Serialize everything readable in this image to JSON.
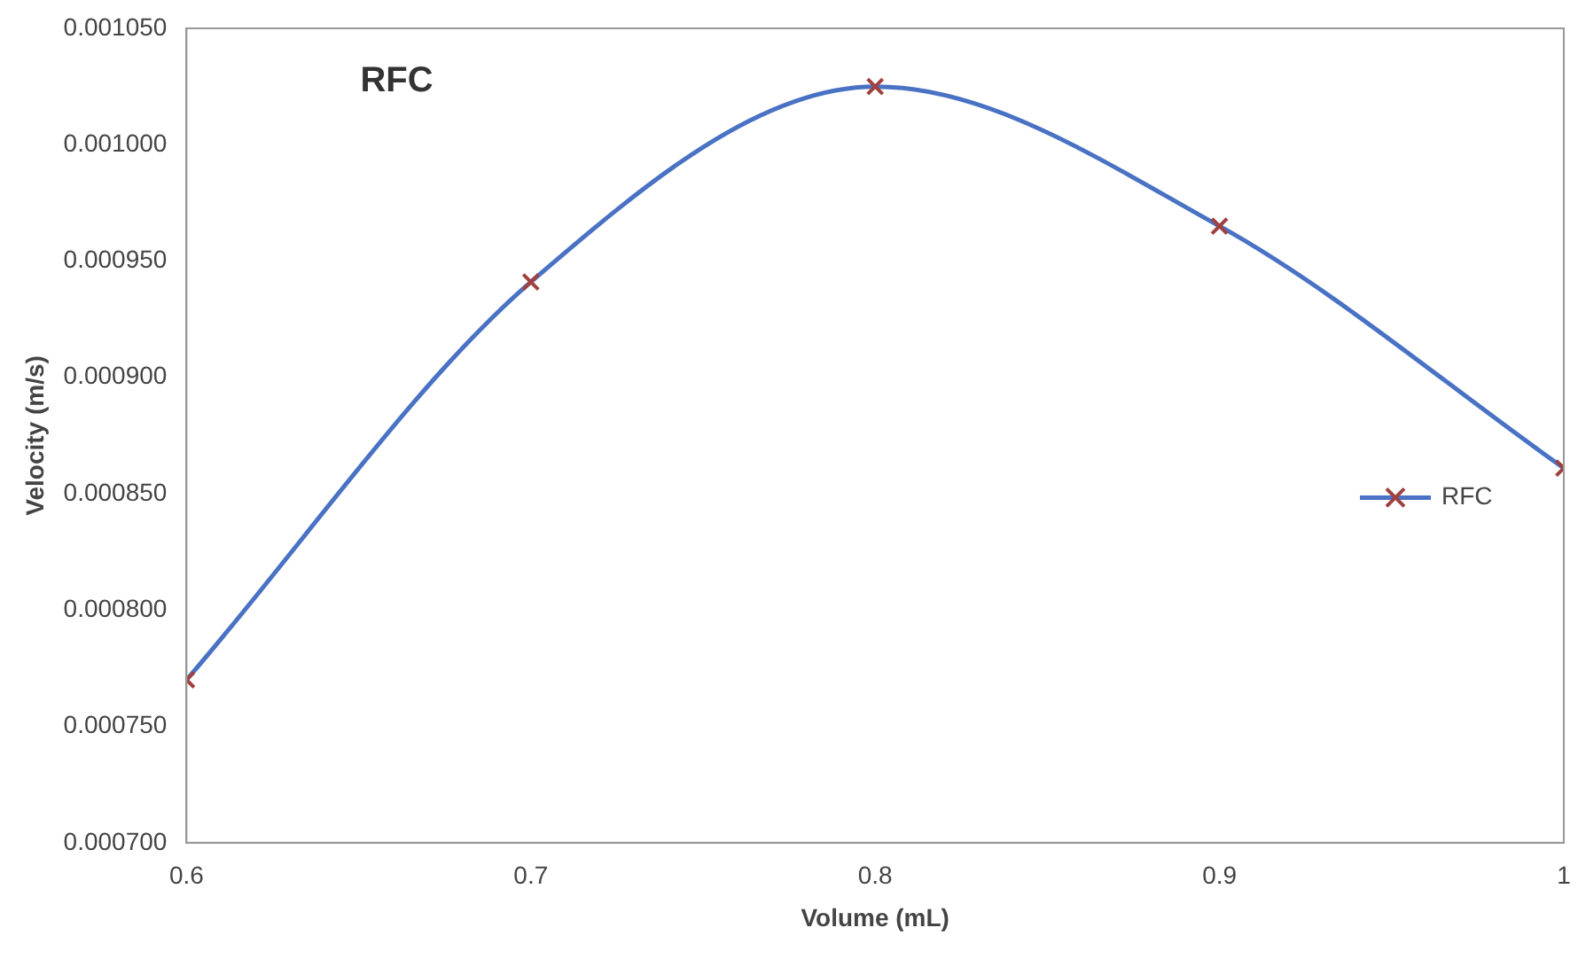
{
  "chart_data": {
    "type": "line",
    "title": "RFC",
    "xlabel": "Volume (mL)",
    "ylabel": "Velocity (m/s)",
    "x": [
      0.6,
      0.7,
      0.8,
      0.9,
      1
    ],
    "series": [
      {
        "name": "RFC",
        "color": "#4a72c4",
        "colors": [
          "#a0413f",
          "#a0413f",
          "#a0413f",
          "#a0413f",
          "#a0413f"
        ],
        "values": [
          0.00077,
          0.000941,
          0.001025,
          0.000965,
          0.000861
        ]
      }
    ],
    "xlim": [
      0.6,
      1
    ],
    "xticks": [
      0.6,
      0.7,
      0.8,
      0.9,
      1
    ],
    "ylim": [
      0.0007,
      0.00105
    ],
    "yticks": [
      {
        "value": 0.0007,
        "label": "0.000700"
      },
      {
        "value": 0.00075,
        "label": "0.000750"
      },
      {
        "value": 0.0008,
        "label": "0.000800"
      },
      {
        "value": 0.00085,
        "label": "0.000850"
      },
      {
        "value": 0.0009,
        "label": "0.000900"
      },
      {
        "value": 0.00095,
        "label": "0.000950"
      },
      {
        "value": 0.001,
        "label": "0.001000"
      },
      {
        "value": 0.00105,
        "label": "0.001050"
      }
    ],
    "grid": false,
    "legend": "right",
    "marker": "cross",
    "line_style": "solid"
  }
}
